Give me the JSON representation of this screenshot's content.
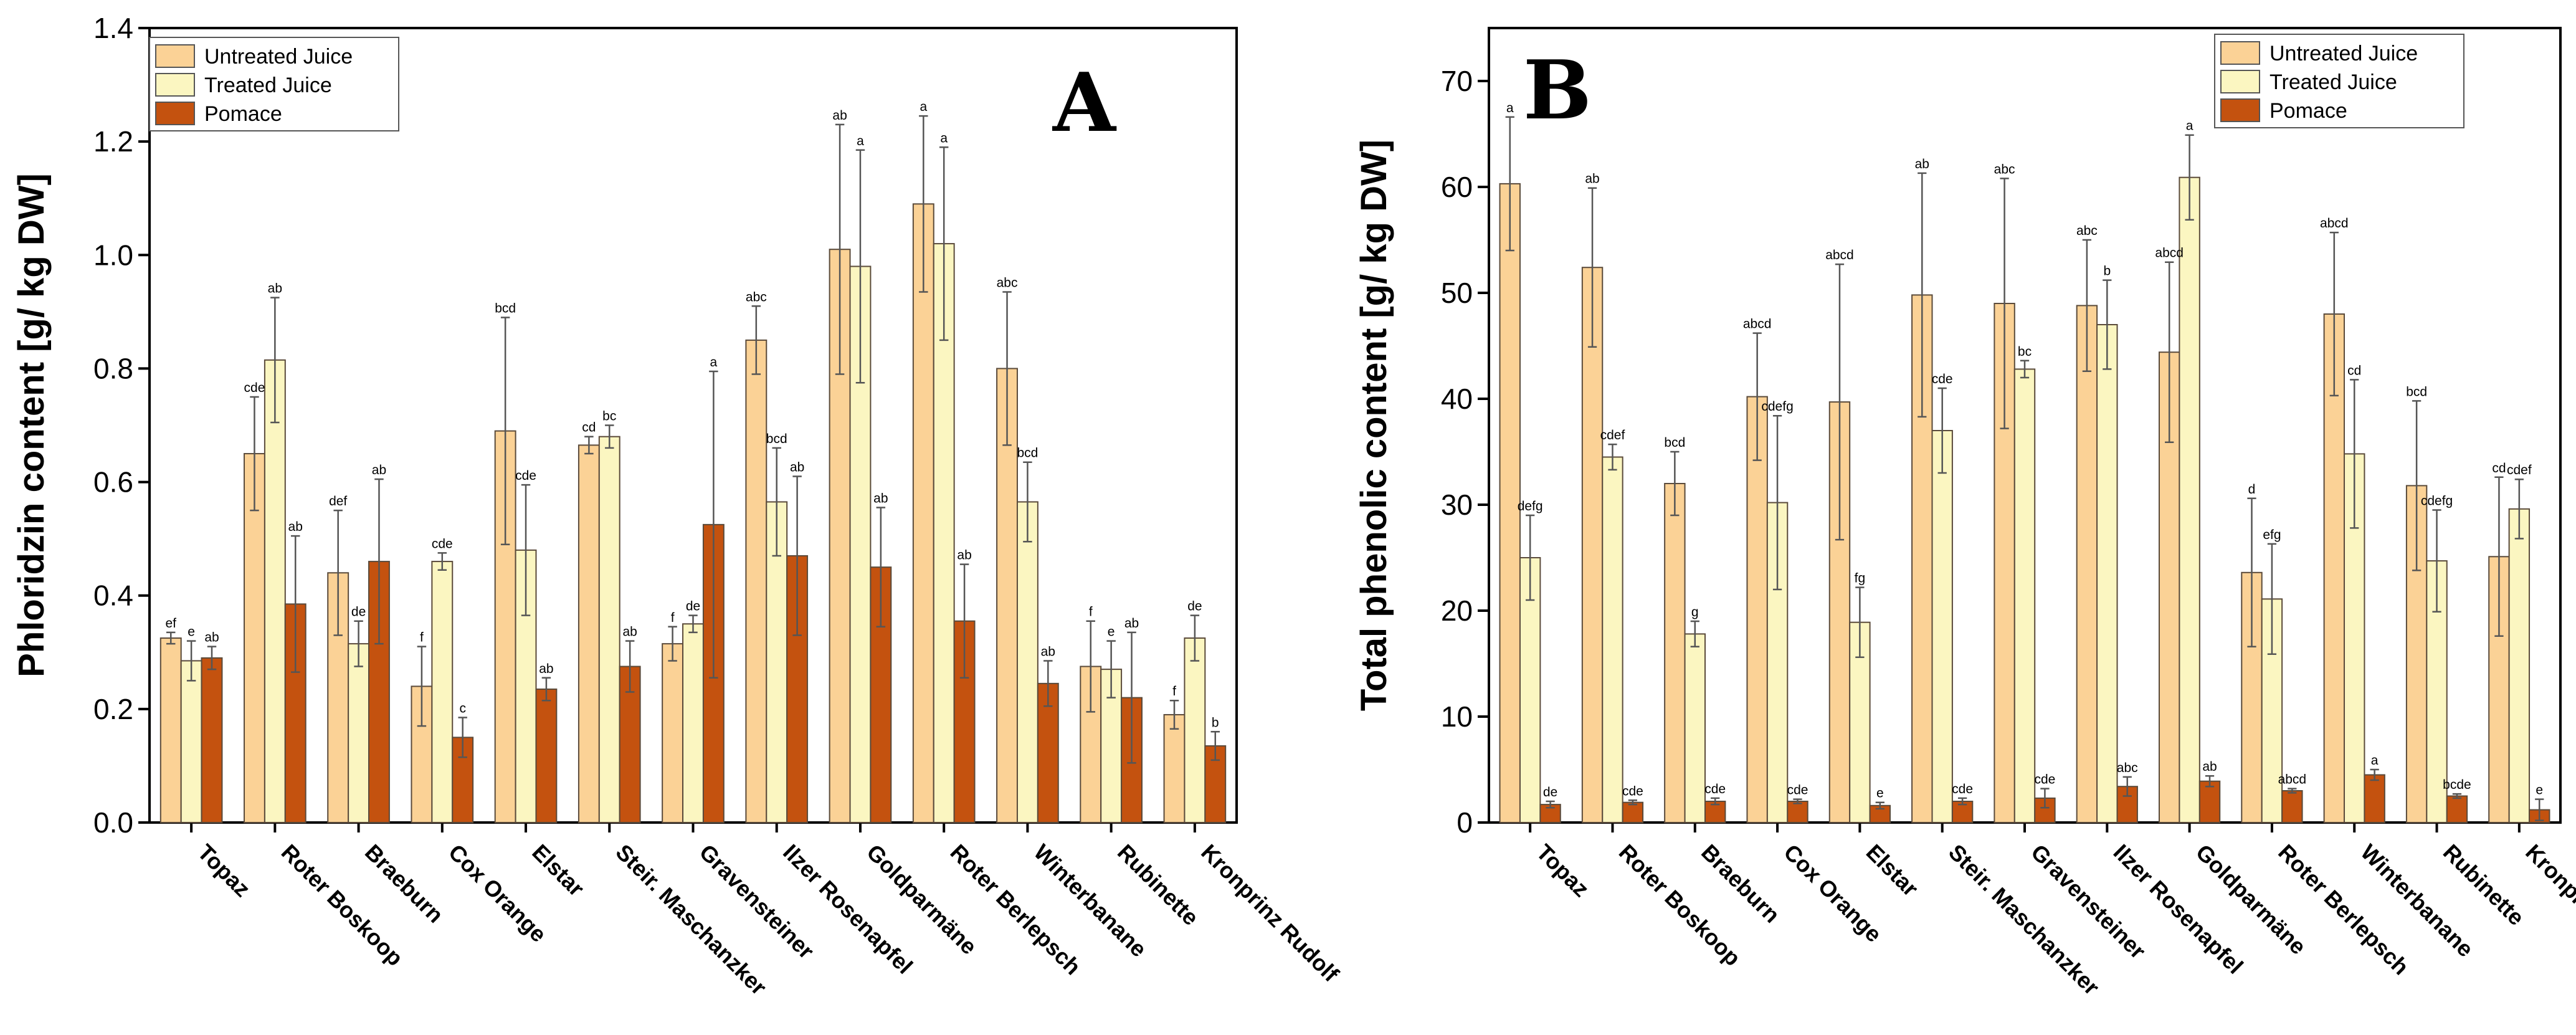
{
  "colors": {
    "untreated": "#fbd296",
    "treated": "#fbf6c1",
    "pomace": "#c4520f"
  },
  "chart_data": [
    {
      "type": "bar",
      "panel_label": "A",
      "ylabel": "Phloridzin content [g/ kg DW]",
      "xlabel": "",
      "ylim": [
        0,
        1.4
      ],
      "yticks": [
        "0.0",
        "0.2",
        "0.4",
        "0.6",
        "0.8",
        "1.0",
        "1.2",
        "1.4"
      ],
      "legend": [
        "Untreated Juice",
        "Treated Juice",
        "Pomace"
      ],
      "legend_position": "top-left",
      "categories": [
        "Topaz",
        "Roter Boskoop",
        "Braeburn",
        "Cox Orange",
        "Elstar",
        "Steir. Maschanzker",
        "Gravensteiner",
        "Ilzer Rosenapfel",
        "Goldparmäne",
        "Roter Berlepsch",
        "Winterbanane",
        "Rubinette",
        "Kronprinz Rudolf"
      ],
      "series": [
        {
          "name": "Untreated Juice",
          "values": [
            0.325,
            0.65,
            0.44,
            0.24,
            0.69,
            0.665,
            0.315,
            0.85,
            1.01,
            1.09,
            0.8,
            0.275,
            0.19
          ],
          "errors": [
            0.01,
            0.1,
            0.11,
            0.07,
            0.2,
            0.015,
            0.03,
            0.06,
            0.22,
            0.155,
            0.135,
            0.08,
            0.025
          ],
          "letters": [
            "ef",
            "cde",
            "def",
            "f",
            "bcd",
            "cd",
            "f",
            "abc",
            "ab",
            "a",
            "abc",
            "f",
            "f"
          ]
        },
        {
          "name": "Treated Juice",
          "values": [
            0.285,
            0.815,
            0.315,
            0.46,
            0.48,
            0.68,
            0.35,
            0.565,
            0.98,
            1.02,
            0.565,
            0.27,
            0.325
          ],
          "errors": [
            0.035,
            0.11,
            0.04,
            0.015,
            0.115,
            0.02,
            0.015,
            0.095,
            0.205,
            0.17,
            0.07,
            0.05,
            0.04
          ],
          "letters": [
            "e",
            "ab",
            "de",
            "cde",
            "cde",
            "bc",
            "de",
            "bcd",
            "a",
            "a",
            "bcd",
            "e",
            "de"
          ]
        },
        {
          "name": "Pomace",
          "values": [
            0.29,
            0.385,
            0.46,
            0.15,
            0.235,
            0.275,
            0.525,
            0.47,
            0.45,
            0.355,
            0.245,
            0.22,
            0.135
          ],
          "errors": [
            0.02,
            0.12,
            0.145,
            0.035,
            0.02,
            0.045,
            0.27,
            0.14,
            0.105,
            0.1,
            0.04,
            0.115,
            0.025
          ],
          "letters": [
            "ab",
            "ab",
            "ab",
            "c",
            "ab",
            "ab",
            "a",
            "ab",
            "ab",
            "ab",
            "ab",
            "ab",
            "b"
          ]
        }
      ]
    },
    {
      "type": "bar",
      "panel_label": "B",
      "ylabel": "Total phenolic content  [g/ kg DW]",
      "xlabel": "",
      "ylim": [
        0,
        75
      ],
      "yticks": [
        "0",
        "10",
        "20",
        "30",
        "40",
        "50",
        "60",
        "70"
      ],
      "legend": [
        "Untreated Juice",
        "Treated Juice",
        "Pomace"
      ],
      "legend_position": "top-right",
      "categories": [
        "Topaz",
        "Roter Boskoop",
        "Braeburn",
        "Cox Orange",
        "Elstar",
        "Steir. Maschanzker",
        "Gravensteiner",
        "Ilzer Rosenapfel",
        "Goldparmäne",
        "Roter Berlepsch",
        "Winterbanane",
        "Rubinette",
        "Kronprinz Rudolf"
      ],
      "series": [
        {
          "name": "Untreated Juice",
          "values": [
            60.3,
            52.4,
            32.0,
            40.2,
            39.7,
            49.8,
            49.0,
            48.8,
            44.4,
            23.6,
            48.0,
            31.8,
            25.1
          ],
          "errors": [
            6.3,
            7.5,
            3.0,
            6.0,
            13.0,
            11.5,
            11.8,
            6.2,
            8.5,
            7.0,
            7.7,
            8.0,
            7.5
          ],
          "letters": [
            "a",
            "ab",
            "bcd",
            "abcd",
            "abcd",
            "ab",
            "abc",
            "abc",
            "abcd",
            "d",
            "abcd",
            "bcd",
            "cd"
          ]
        },
        {
          "name": "Treated Juice",
          "values": [
            25.0,
            34.5,
            17.8,
            30.2,
            18.9,
            37.0,
            42.8,
            47.0,
            60.9,
            21.1,
            34.8,
            24.7,
            29.6
          ],
          "errors": [
            4.0,
            1.2,
            1.2,
            8.2,
            3.3,
            4.0,
            0.8,
            4.2,
            4.0,
            5.2,
            7.0,
            4.8,
            2.8
          ],
          "letters": [
            "defg",
            "cdef",
            "g",
            "cdefg",
            "fg",
            "cde",
            "bc",
            "b",
            "a",
            "efg",
            "cd",
            "cdefg",
            "cdef"
          ]
        },
        {
          "name": "Pomace",
          "values": [
            1.7,
            1.9,
            2.0,
            2.0,
            1.6,
            2.0,
            2.3,
            3.4,
            3.9,
            3.0,
            4.5,
            2.5,
            1.2
          ],
          "errors": [
            0.3,
            0.2,
            0.3,
            0.2,
            0.3,
            0.3,
            0.9,
            0.9,
            0.5,
            0.2,
            0.5,
            0.2,
            1.0
          ],
          "letters": [
            "de",
            "cde",
            "cde",
            "cde",
            "e",
            "cde",
            "cde",
            "abc",
            "ab",
            "abcd",
            "a",
            "bcde",
            "e"
          ]
        }
      ]
    }
  ]
}
